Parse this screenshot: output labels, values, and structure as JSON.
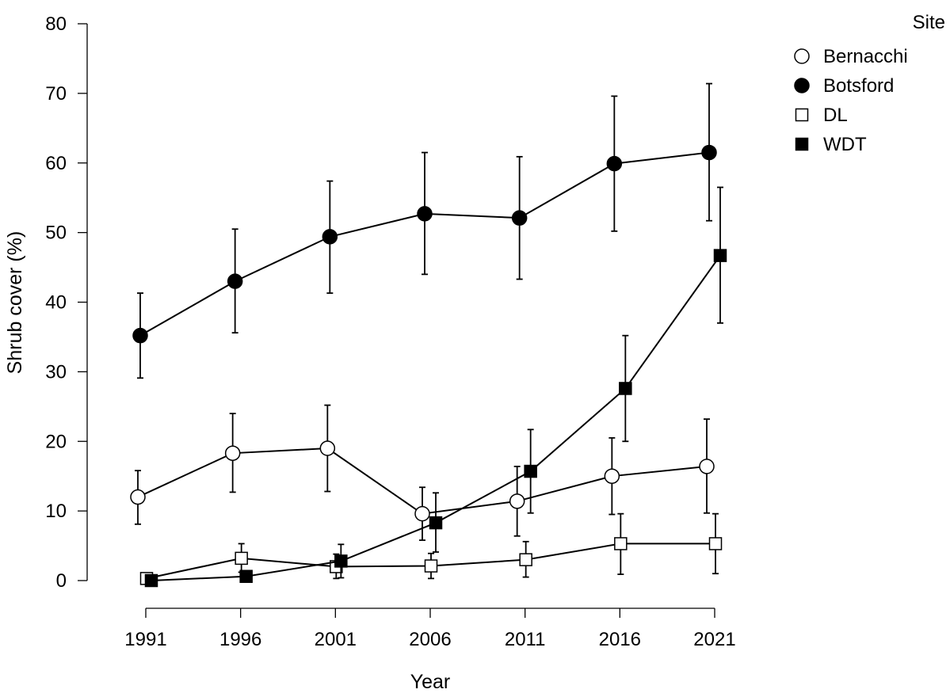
{
  "chart_data": {
    "type": "line",
    "xlabel": "Year",
    "ylabel": "Shrub cover (%)",
    "x": [
      1991,
      1996,
      2001,
      2006,
      2011,
      2016,
      2021
    ],
    "x_tick_labels": [
      "1991",
      "1996",
      "2001",
      "2006",
      "2011",
      "2016",
      "2021"
    ],
    "y_ticks": [
      0,
      10,
      20,
      30,
      40,
      50,
      60,
      70,
      80
    ],
    "ylim": [
      0,
      80
    ],
    "xlim": [
      1991,
      2021
    ],
    "grid": false,
    "legend": {
      "title": "Site",
      "placement": "top-right"
    },
    "series": [
      {
        "name": "Bernacchi",
        "marker": "open-circle",
        "values": [
          12.0,
          18.3,
          19.0,
          9.6,
          11.4,
          15.0,
          16.4
        ],
        "err_low": [
          8.1,
          12.7,
          12.8,
          5.8,
          6.4,
          9.5,
          9.7
        ],
        "err_high": [
          15.8,
          24.0,
          25.2,
          13.4,
          16.4,
          20.5,
          23.2
        ]
      },
      {
        "name": "Botsford",
        "marker": "filled-circle",
        "values": [
          35.2,
          43.0,
          49.4,
          52.7,
          52.1,
          59.9,
          61.5
        ],
        "err_low": [
          29.1,
          35.6,
          41.3,
          44.0,
          43.3,
          50.2,
          51.7
        ],
        "err_high": [
          41.3,
          50.5,
          57.4,
          61.5,
          60.9,
          69.6,
          71.4
        ]
      },
      {
        "name": "DL",
        "marker": "open-square",
        "values": [
          0.3,
          3.2,
          2.0,
          2.1,
          3.0,
          5.3,
          5.3
        ],
        "err_low": [
          0.3,
          1.2,
          0.3,
          0.3,
          0.5,
          0.9,
          1.0
        ],
        "err_high": [
          0.3,
          5.3,
          3.8,
          3.9,
          5.6,
          9.6,
          9.6
        ]
      },
      {
        "name": "WDT",
        "marker": "filled-square",
        "values": [
          0.0,
          0.6,
          2.8,
          8.3,
          15.7,
          27.6,
          46.7
        ],
        "err_low": [
          0.0,
          0.6,
          0.4,
          4.1,
          9.7,
          20.0,
          37.0
        ],
        "err_high": [
          0.0,
          0.6,
          5.2,
          12.6,
          21.7,
          35.2,
          56.5
        ]
      }
    ]
  }
}
